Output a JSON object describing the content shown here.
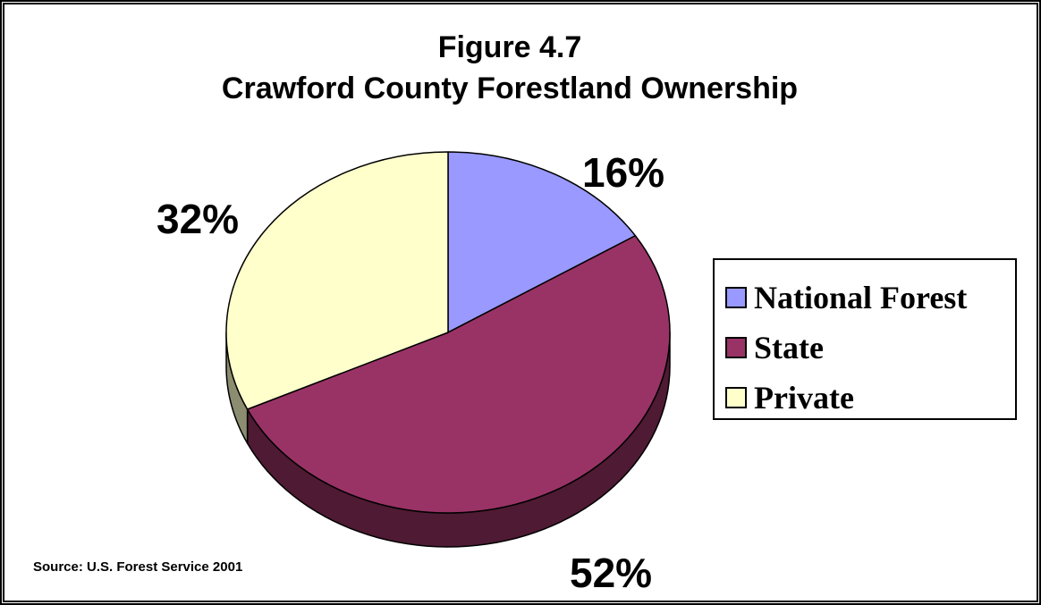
{
  "chart_data": {
    "type": "pie",
    "title_line1": "Figure 4.7",
    "title_line2": "Crawford County Forestland Ownership",
    "slices": [
      {
        "label": "National Forest",
        "value": 16,
        "value_label": "16%",
        "color": "#9999FF",
        "side_color": "#5C5C99"
      },
      {
        "label": "State",
        "value": 52,
        "value_label": "52%",
        "color": "#993366",
        "side_color": "#4F1A33"
      },
      {
        "label": "Private",
        "value": 32,
        "value_label": "32%",
        "color": "#FFFFCC",
        "side_color": "#8C8C70"
      }
    ],
    "legend_position": "right",
    "source": "Source: U.S. Forest Service 2001"
  }
}
